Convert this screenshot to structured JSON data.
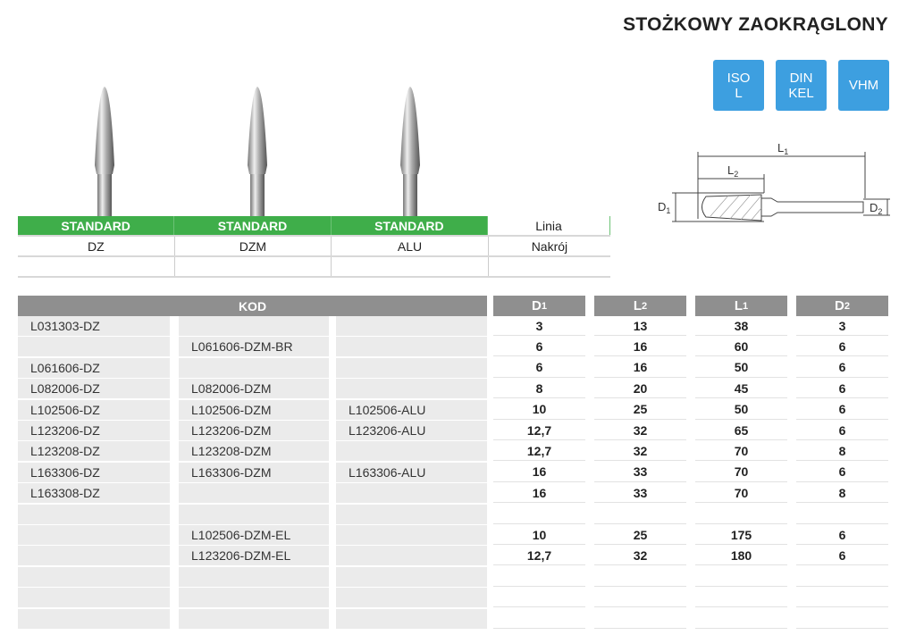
{
  "title": "STOŻKOWY ZAOKRĄGLONY",
  "badges": [
    "ISO\nL",
    "DIN\nKEL",
    "VHM"
  ],
  "badge_color": "#3d9fe0",
  "diagram_labels": {
    "L1": "L",
    "L1_sub": "1",
    "L2": "L",
    "L2_sub": "2",
    "D1": "D",
    "D1_sub": "1",
    "D2": "D",
    "D2_sub": "2"
  },
  "top_table": {
    "row1": [
      "STANDARD",
      "STANDARD",
      "STANDARD",
      "Linia"
    ],
    "row2": [
      "DZ",
      "DZM",
      "ALU",
      "Nakrój"
    ],
    "row3": [
      "",
      "",
      "",
      ""
    ]
  },
  "green": "#3fae4a",
  "table": {
    "kod_header": "KOD",
    "dim_headers": [
      {
        "l": "D",
        "s": "1"
      },
      {
        "l": "L",
        "s": "2"
      },
      {
        "l": "L",
        "s": "1"
      },
      {
        "l": "D",
        "s": "2"
      }
    ],
    "rows": [
      [
        "L031303-DZ",
        "",
        "",
        "3",
        "13",
        "38",
        "3"
      ],
      [
        "",
        "L061606-DZM-BR",
        "",
        "6",
        "16",
        "60",
        "6"
      ],
      [
        "L061606-DZ",
        "",
        "",
        "6",
        "16",
        "50",
        "6"
      ],
      [
        "L082006-DZ",
        "L082006-DZM",
        "",
        "8",
        "20",
        "45",
        "6"
      ],
      [
        "L102506-DZ",
        "L102506-DZM",
        "L102506-ALU",
        "10",
        "25",
        "50",
        "6"
      ],
      [
        "L123206-DZ",
        "L123206-DZM",
        "L123206-ALU",
        "12,7",
        "32",
        "65",
        "6"
      ],
      [
        "L123208-DZ",
        "L123208-DZM",
        "",
        "12,7",
        "32",
        "70",
        "8"
      ],
      [
        "L163306-DZ",
        "L163306-DZM",
        "L163306-ALU",
        "16",
        "33",
        "70",
        "6"
      ],
      [
        "L163308-DZ",
        "",
        "",
        "16",
        "33",
        "70",
        "8"
      ],
      [
        "",
        "",
        "",
        "",
        "",
        "",
        ""
      ],
      [
        "",
        "L102506-DZM-EL",
        "",
        "10",
        "25",
        "175",
        "6"
      ],
      [
        "",
        "L123206-DZM-EL",
        "",
        "12,7",
        "32",
        "180",
        "6"
      ],
      [
        "",
        "",
        "",
        "",
        "",
        "",
        ""
      ],
      [
        "",
        "",
        "",
        "",
        "",
        "",
        ""
      ],
      [
        "",
        "",
        "",
        "",
        "",
        "",
        ""
      ]
    ]
  }
}
